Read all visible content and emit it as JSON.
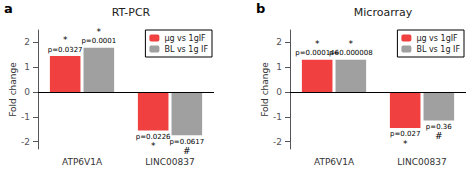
{
  "chart_data": [
    {
      "type": "bar",
      "title": "RT-PCR",
      "panel_label": "a",
      "categories": [
        "ATP6V1A",
        "LINC00837"
      ],
      "series": [
        {
          "name": "μg vs 1gIF",
          "color": "#f04040",
          "values": [
            1.45,
            -1.55
          ],
          "pvalues": [
            "p=0.0327",
            "p=0.0226"
          ],
          "stars": [
            "*",
            "*"
          ]
        },
        {
          "name": "BL vs 1g IF",
          "color": "#a0a0a0",
          "values": [
            1.78,
            -1.75
          ],
          "pvalues": [
            "p=0.0001",
            "p=0.0617"
          ],
          "stars": [
            "*",
            "#"
          ]
        }
      ],
      "ylabel": "Fold change",
      "ylim": [
        -2.3,
        2.5
      ],
      "yticks": [
        -2,
        -1,
        0,
        1,
        2
      ],
      "grid": false,
      "legend": "upper right"
    },
    {
      "type": "bar",
      "title": "Microarray",
      "panel_label": "b",
      "categories": [
        "ATP6V1A",
        "LINC00837"
      ],
      "series": [
        {
          "name": "μg vs 1gIF",
          "color": "#f04040",
          "values": [
            1.3,
            -1.45
          ],
          "pvalues": [
            "p=0.000146",
            "p=0.027"
          ],
          "stars": [
            "*",
            "*"
          ]
        },
        {
          "name": "BL vs 1g IF",
          "color": "#a0a0a0",
          "values": [
            1.3,
            -1.15
          ],
          "pvalues": [
            "p=0.000008",
            "p=0.36"
          ],
          "stars": [
            "*",
            "#"
          ]
        }
      ],
      "ylabel": "Fold change",
      "ylim": [
        -2.3,
        2.5
      ],
      "yticks": [
        -2,
        -1,
        0,
        1,
        2
      ],
      "grid": false,
      "legend": "upper right"
    }
  ]
}
